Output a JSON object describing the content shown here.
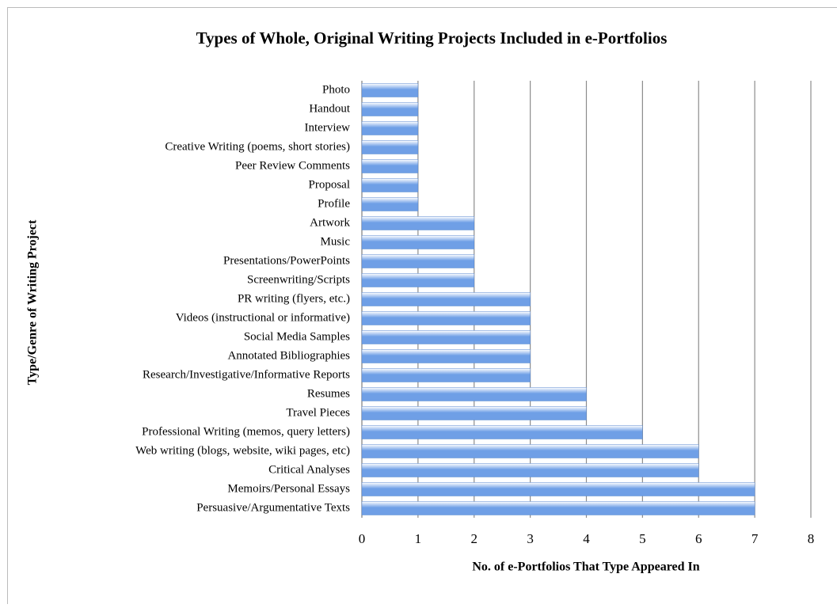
{
  "chart_data": {
    "type": "bar",
    "orientation": "horizontal",
    "title": "Types of Whole, Original Writing Projects Included in e-Portfolios",
    "x_label": "No. of e-Portfolios That Type Appeared In",
    "y_label": "Type/Genre of Writing Project",
    "categories": [
      "Photo",
      "Handout",
      "Interview",
      "Creative Writing (poems, short stories)",
      "Peer Review Comments",
      "Proposal",
      "Profile",
      "Artwork",
      "Music",
      "Presentations/PowerPoints",
      "Screenwriting/Scripts",
      "PR writing (flyers, etc.)",
      "Videos (instructional or informative)",
      "Social Media Samples",
      "Annotated Bibliographies",
      "Research/Investigative/Informative Reports",
      "Resumes",
      "Travel Pieces",
      "Professional Writing (memos, query letters)",
      "Web writing (blogs, website, wiki pages, etc)",
      "Critical Analyses",
      "Memoirs/Personal Essays",
      "Persuasive/Argumentative Texts"
    ],
    "values": [
      1,
      1,
      1,
      1,
      1,
      1,
      1,
      2,
      2,
      2,
      2,
      3,
      3,
      3,
      3,
      3,
      4,
      4,
      5,
      6,
      6,
      7,
      7
    ],
    "color": "#6f9fe6",
    "xlim": [
      0,
      8
    ],
    "xticks": [
      0,
      1,
      2,
      3,
      4,
      5,
      6,
      7,
      8
    ],
    "grid": true
  }
}
